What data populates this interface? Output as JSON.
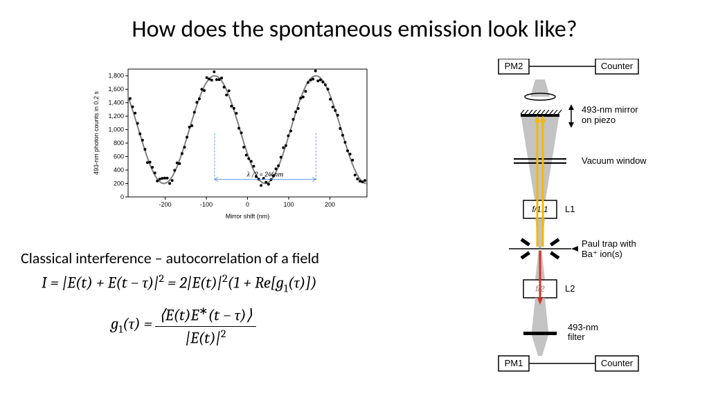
{
  "title": "How does the spontaneous emission look like?",
  "chart": {
    "type": "scatter-with-fit",
    "xlabel": "Mirror shift (nm)",
    "ylabel": "493-nm photon counts in 0.2 s",
    "xlim": [
      -290,
      290
    ],
    "ylim": [
      0,
      1900
    ],
    "xticks": [
      -200,
      -100,
      0,
      100,
      200
    ],
    "yticks": [
      0,
      200,
      400,
      600,
      800,
      1000,
      1200,
      1400,
      1600,
      1800
    ],
    "ytick_labels": [
      "0",
      "200",
      "400",
      "600",
      "800",
      "1,000",
      "1,200",
      "1,400",
      "1,600",
      "1,800"
    ],
    "annotation": "λ /2 = 246nm",
    "annotation_x_range": [
      -80,
      166
    ],
    "fit_amplitude": 800,
    "fit_offset": 1000,
    "fit_period_nm": 246,
    "fit_phase_nm": -80,
    "fit_color": "#808080",
    "fit_width": 2,
    "point_color": "#000000",
    "point_size": 2,
    "noise_sigma": 80,
    "grid_color": "#000000",
    "background_color": "#ffffff",
    "tick_fontsize": 9,
    "label_fontsize": 9,
    "annotation_arrow_color": "#4a86e8"
  },
  "subtitle": "Classical interference – autocorrelation of a field",
  "eq1": "I = |E(t) + E(t − τ)|² = 2|E(t)|²(1 + Re[g₁(τ)])",
  "eq2": {
    "lhs": "g₁(τ) = ",
    "num": "⟨E(t)E*(t − τ)⟩",
    "den": "|E(t)|²"
  },
  "diagram": {
    "boxes": {
      "pm2": "PM2",
      "counter_top": "Counter",
      "l1": "L1",
      "l1_f": "f/1.1",
      "l2": "L2",
      "l2_f": "f/2",
      "pm1": "PM1",
      "counter_bot": "Counter"
    },
    "labels": {
      "mirror": "493-nm mirror\non piezo",
      "window": "Vacuum window",
      "trap": "Paul trap with\nBa⁺ ion(s)",
      "filter": "493-nm\nfilter"
    },
    "colors": {
      "box_stroke": "#000000",
      "box_fill": "#ffffff",
      "cone_fill": "#b8b8b8",
      "beam_up": "#f5b800",
      "beam_down": "#d93025",
      "mirror_fill": "#000000",
      "line": "#000000"
    }
  }
}
